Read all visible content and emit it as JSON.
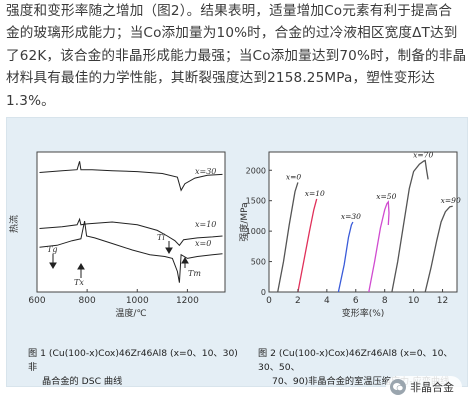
{
  "paragraph": {
    "lines": [
      "强度和变形率随之增加（图2）。结果表明，适量增加Co元素有利于提高合",
      "金的玻璃形成能力；当Co添加量为10%时，合金的过冷液相区宽度ΔT达到",
      "了62K，该合金的非晶形成能力最强；当Co添加量达到70%时，制备的非晶",
      "材料具有最佳的力学性能，其断裂强度达到2158.25MPa，塑性变形达",
      "1.3%。"
    ]
  },
  "figure1": {
    "caption_line1": "图 1   (Cu(100-x)Cox)46Zr46Al8 (x=0、10、30)非",
    "caption_line2": "晶合金的 DSC 曲线",
    "chart_data": {
      "type": "line",
      "xlabel": "温度/℃",
      "ylabel": "热流",
      "xlim": [
        600,
        1350
      ],
      "x_ticks": [
        "600",
        "800",
        "1000",
        "1200"
      ],
      "series": [
        {
          "name": "x=30",
          "points": [
            [
              610,
              128
            ],
            [
              700,
              130
            ],
            [
              760,
              131
            ],
            [
              770,
              140
            ],
            [
              775,
              131
            ],
            [
              820,
              131
            ],
            [
              900,
              130
            ],
            [
              1000,
              129
            ],
            [
              1100,
              127
            ],
            [
              1160,
              123
            ],
            [
              1175,
              109
            ],
            [
              1190,
              116
            ],
            [
              1230,
              122
            ],
            [
              1280,
              125
            ],
            [
              1340,
              126
            ]
          ]
        },
        {
          "name": "x=10",
          "points": [
            [
              610,
              68
            ],
            [
              700,
              70
            ],
            [
              760,
              72
            ],
            [
              770,
              78
            ],
            [
              775,
              72
            ],
            [
              800,
              73
            ],
            [
              900,
              75
            ],
            [
              1000,
              72
            ],
            [
              1080,
              66
            ],
            [
              1120,
              60
            ],
            [
              1150,
              55
            ],
            [
              1168,
              50
            ],
            [
              1185,
              56
            ],
            [
              1240,
              58
            ],
            [
              1300,
              59
            ],
            [
              1340,
              60
            ]
          ]
        },
        {
          "name": "x=0",
          "points": [
            [
              610,
              48
            ],
            [
              680,
              50
            ],
            [
              740,
              55
            ],
            [
              775,
              57
            ],
            [
              790,
              76
            ],
            [
              798,
              60
            ],
            [
              830,
              58
            ],
            [
              900,
              52
            ],
            [
              980,
              45
            ],
            [
              1050,
              40
            ],
            [
              1110,
              38
            ],
            [
              1140,
              36
            ],
            [
              1160,
              22
            ],
            [
              1168,
              10
            ],
            [
              1175,
              40
            ],
            [
              1200,
              36
            ],
            [
              1240,
              38
            ],
            [
              1300,
              40
            ],
            [
              1340,
              41
            ]
          ]
        }
      ],
      "labels": [
        "x=30",
        "x=10",
        "x=0"
      ],
      "annotations": [
        "Tg",
        "Tx",
        "Tl",
        "Tm"
      ]
    }
  },
  "figure2": {
    "caption_line1": "图 2   (Cu(100-x)Cox)46Zr46Al8 (x=0、10、30、50、",
    "caption_line2": "70、90)非晶合金的室温压缩应力-应变曲线",
    "chart_data": {
      "type": "line",
      "xlabel": "变形率(%)",
      "ylabel": "强度/MPa",
      "xlim": [
        0,
        13
      ],
      "ylim": [
        0,
        2300
      ],
      "x_ticks": [
        "0",
        "2",
        "4",
        "6",
        "8",
        "10",
        "12"
      ],
      "y_ticks": [
        "0",
        "500",
        "1000",
        "1500",
        "2000"
      ],
      "series": [
        {
          "name": "x=0",
          "color": "#555555",
          "points": [
            [
              0.6,
              0
            ],
            [
              1.0,
              500
            ],
            [
              1.4,
              1100
            ],
            [
              1.8,
              1650
            ],
            [
              2.0,
              1800
            ]
          ]
        },
        {
          "name": "x=10",
          "color": "#e0305a",
          "points": [
            [
              2.0,
              0
            ],
            [
              2.4,
              500
            ],
            [
              2.8,
              1000
            ],
            [
              3.1,
              1350
            ],
            [
              3.3,
              1530
            ]
          ]
        },
        {
          "name": "x=30",
          "color": "#3a5bd9",
          "points": [
            [
              4.8,
              0
            ],
            [
              5.2,
              450
            ],
            [
              5.5,
              900
            ],
            [
              5.7,
              1100
            ],
            [
              5.8,
              1150
            ]
          ]
        },
        {
          "name": "x=50",
          "color": "#d04bd0",
          "points": [
            [
              6.9,
              0
            ],
            [
              7.3,
              500
            ],
            [
              7.7,
              1050
            ],
            [
              8.0,
              1350
            ],
            [
              8.15,
              1450
            ],
            [
              8.25,
              1480
            ],
            [
              8.3,
              1300
            ],
            [
              8.25,
              1100
            ]
          ]
        },
        {
          "name": "x=70",
          "color": "#555555",
          "points": [
            [
              8.5,
              0
            ],
            [
              8.9,
              500
            ],
            [
              9.3,
              1100
            ],
            [
              9.7,
              1700
            ],
            [
              10.0,
              1980
            ],
            [
              10.4,
              2100
            ],
            [
              10.7,
              2150
            ],
            [
              10.8,
              2160
            ],
            [
              10.9,
              2000
            ],
            [
              11.0,
              1850
            ]
          ]
        },
        {
          "name": "x=90",
          "color": "#555555",
          "points": [
            [
              10.8,
              0
            ],
            [
              11.2,
              400
            ],
            [
              11.6,
              850
            ],
            [
              11.9,
              1150
            ],
            [
              12.2,
              1320
            ],
            [
              12.5,
              1400
            ],
            [
              12.7,
              1410
            ]
          ]
        }
      ]
    }
  },
  "brand": {
    "name": "非晶合金"
  }
}
